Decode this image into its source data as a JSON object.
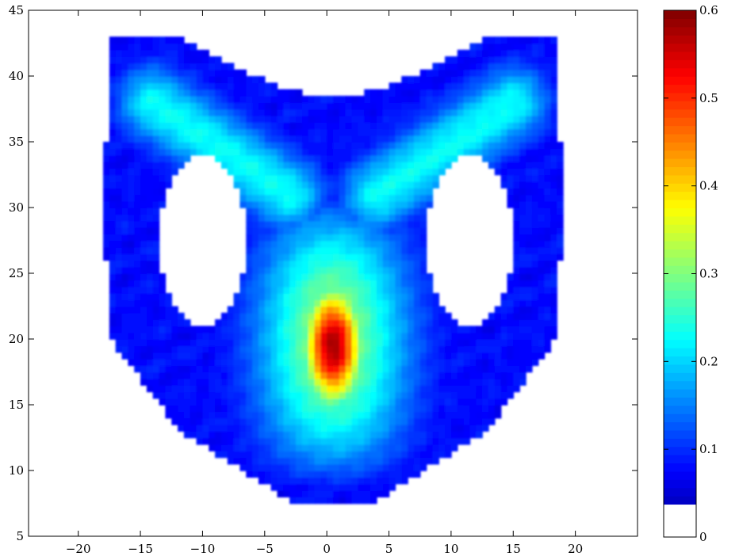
{
  "chart_data": [
    {
      "type": "heatmap",
      "title": "",
      "xlabel": "",
      "ylabel": "",
      "xlim": [
        -24,
        25
      ],
      "ylim": [
        5,
        45
      ],
      "xticks": [
        -20,
        -15,
        -10,
        -5,
        0,
        5,
        10,
        15,
        20
      ],
      "xtick_labels": [
        "−20",
        "−15",
        "−10",
        "−5",
        "0",
        "5",
        "10",
        "15",
        "20"
      ],
      "yticks": [
        5,
        10,
        15,
        20,
        25,
        30,
        35,
        40,
        45
      ],
      "ytick_labels": [
        "5",
        "10",
        "15",
        "20",
        "25",
        "30",
        "35",
        "40",
        "45"
      ],
      "grid": false,
      "colormap": "jet",
      "color_threshold": 0.04,
      "below_threshold_color": "#ffffff",
      "density_regions": {
        "outer_region_value": 0.08,
        "shape": "symmetric head-like region with two large empty holes",
        "empty_holes": [
          {
            "center": [
              -10,
              27.5
            ],
            "x_half_width": 3.5,
            "y_half_height": 6.5
          },
          {
            "center": [
              11.5,
              27.5
            ],
            "x_half_width": 3.5,
            "y_half_height": 6.5
          }
        ],
        "arms": [
          {
            "from": [
              -14,
              38
            ],
            "to": [
              -3,
              31
            ],
            "value": 0.17
          },
          {
            "from": [
              15,
              38
            ],
            "to": [
              4,
              31
            ],
            "value": 0.17
          }
        ],
        "central_column": {
          "x_center": 0.5,
          "y_range": [
            8,
            32
          ],
          "peak": [
            0.5,
            19.5
          ],
          "peak_value": 0.58
        }
      },
      "colorbar": {
        "vmin": 0,
        "vmax": 0.6,
        "ticks": [
          0,
          0.1,
          0.2,
          0.3,
          0.4,
          0.5,
          0.6
        ],
        "tick_labels": [
          "0",
          "0.1",
          "0.2",
          "0.3",
          "0.4",
          "0.5",
          "0.6"
        ],
        "white_below": 0.04
      }
    }
  ]
}
